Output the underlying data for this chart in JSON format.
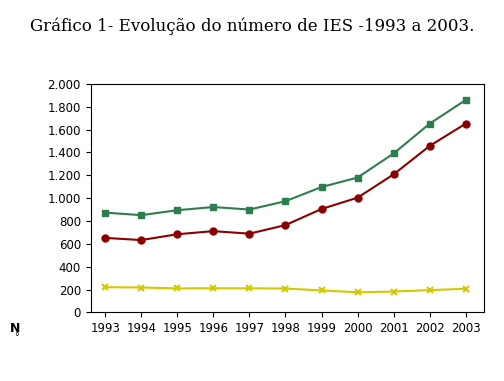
{
  "title": "Gráfico 1- Evolução do número de IES -1993 a 2003.",
  "years": [
    1993,
    1994,
    1995,
    1996,
    1997,
    1998,
    1999,
    2000,
    2001,
    2002,
    2003
  ],
  "total": [
    873,
    851,
    894,
    922,
    900,
    973,
    1097,
    1180,
    1391,
    1652,
    1859
  ],
  "publica": [
    221,
    218,
    210,
    211,
    211,
    209,
    192,
    176,
    183,
    195,
    207
  ],
  "privada": [
    652,
    633,
    684,
    711,
    689,
    764,
    905,
    1004,
    1208,
    1457,
    1652
  ],
  "total_color": "#2e7d4f",
  "publica_color": "#d4c800",
  "privada_color": "#8b0000",
  "ylim": [
    0,
    2000
  ],
  "yticks": [
    0,
    200,
    400,
    600,
    800,
    1000,
    1200,
    1400,
    1600,
    1800,
    2000
  ],
  "background_color": "#ffffff",
  "title_fontsize": 12,
  "tick_fontsize": 8.5,
  "legend_fontsize": 8.5,
  "marker_size": 5,
  "linewidth": 1.5
}
